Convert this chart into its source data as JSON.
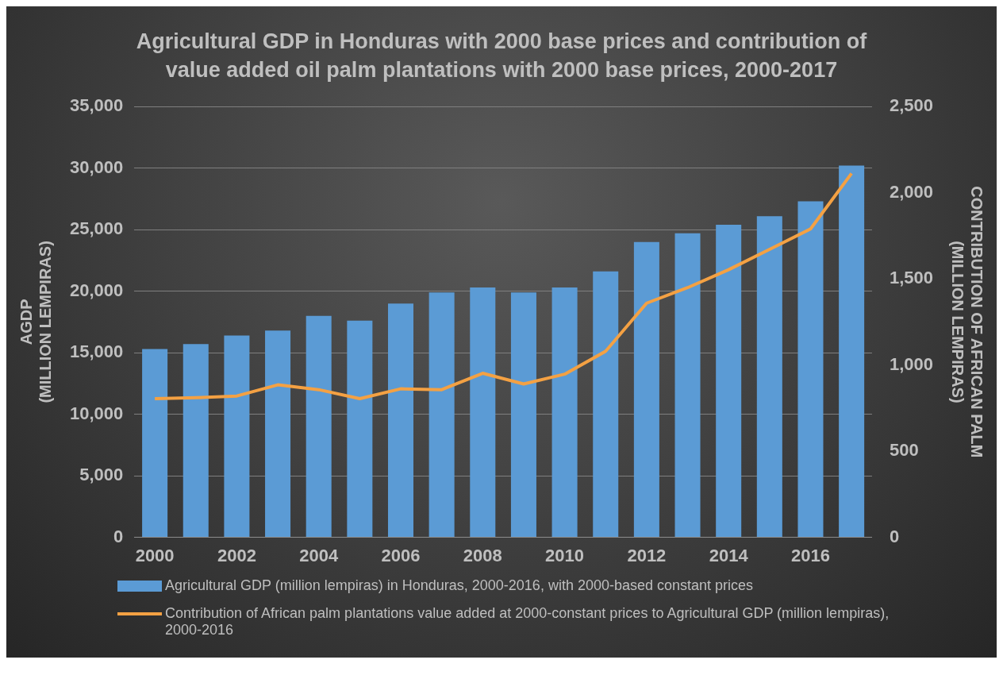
{
  "chart_data": {
    "type": "bar",
    "title": "Agricultural GDP in Honduras with 2000 base prices and contribution of value added oil palm plantations with 2000 base prices, 2000-2017",
    "ylabel": "AGDP (MILLION LEMPIRAS)",
    "y2label": "CONTRIBUTION OF AFRICAN PALM (MILLION LEMPIRAS)",
    "categories": [
      "2000",
      null,
      "2002",
      null,
      "2004",
      null,
      "2006",
      null,
      "2008",
      null,
      "2010",
      null,
      "2012",
      null,
      "2014",
      null,
      "2016",
      null
    ],
    "series": [
      {
        "name": "Agricultural GDP (million lempiras) in Honduras, 2000-2016, with 2000-based constant prices",
        "color": "#5b9bd5",
        "values": [
          15300,
          15700,
          16400,
          16800,
          18000,
          17600,
          19000,
          19900,
          20300,
          19900,
          20300,
          21600,
          24000,
          24700,
          25400,
          26100,
          27300,
          30200
        ]
      },
      {
        "name": "Contribution of African palm plantations value added at 2000-constant prices to Agricultural GDP (million lempiras), 2000-2016",
        "type": "line",
        "axis": "y2",
        "color": "#f4a143",
        "values": [
          805,
          810,
          820,
          885,
          857,
          805,
          862,
          857,
          952,
          890,
          947,
          1080,
          1359,
          1449,
          1553,
          1671,
          1790,
          2112
        ]
      }
    ],
    "ylim": [
      0,
      35000
    ],
    "yticks": [
      0,
      {
        "value": 5000,
        "label": "5,000"
      },
      {
        "value": 10000,
        "label": "10,000"
      },
      {
        "value": 15000,
        "label": "15,000"
      },
      {
        "value": 20000,
        "label": "20,000"
      },
      {
        "value": 25000,
        "label": "25,000"
      },
      {
        "value": 30000,
        "label": "30,000"
      },
      {
        "value": 35000,
        "label": "35,000"
      }
    ],
    "y2lim": [
      0,
      2500
    ],
    "y2ticks": [
      0,
      500,
      {
        "value": 1000,
        "label": "1,000"
      },
      {
        "value": 1500,
        "label": "1,500"
      },
      {
        "value": 2000,
        "label": "2,000"
      },
      {
        "value": 2500,
        "label": "2,500"
      }
    ],
    "grid": "y",
    "legend": "bottom",
    "marker": "none",
    "line_style": "solid"
  }
}
